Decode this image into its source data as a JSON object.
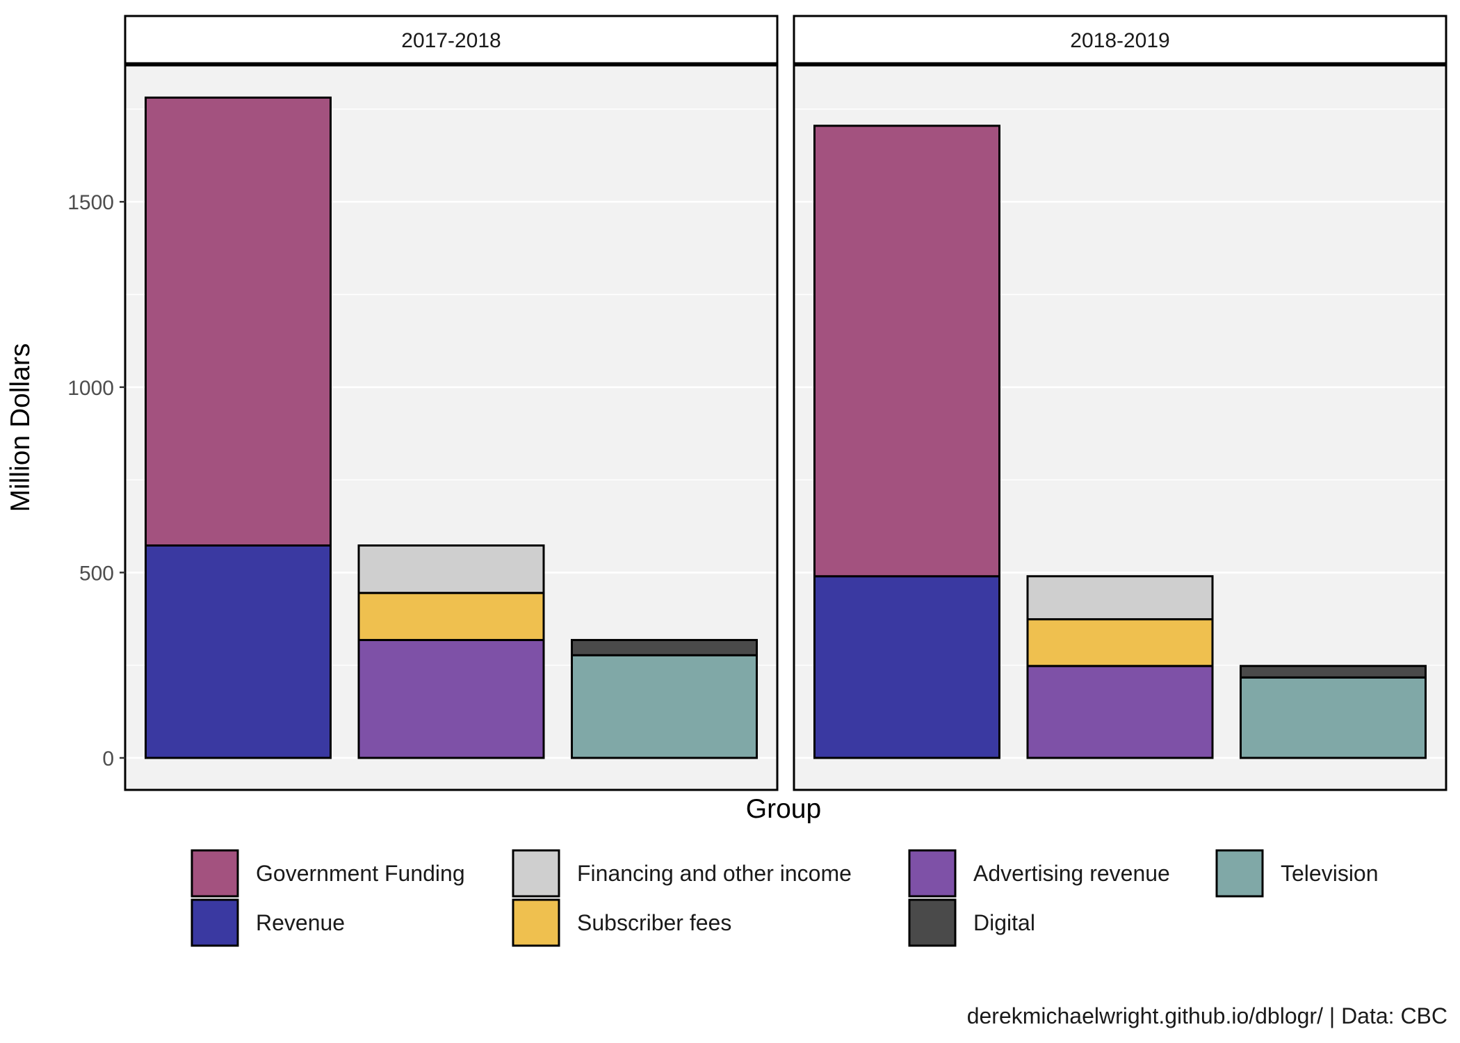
{
  "chart_data": {
    "type": "bar",
    "stacked": true,
    "faceted": true,
    "xlabel": "Group",
    "ylabel": "Million Dollars",
    "ylim": [
      -90,
      1900
    ],
    "y_ticks": [
      0,
      500,
      1000,
      1500
    ],
    "y_tick_labels": [
      "0",
      "500",
      "1000",
      "1500"
    ],
    "grid": "on",
    "legend_position": "bottom",
    "caption": "derekmichaelwright.github.io/dblogr/ | Data: CBC",
    "colors": {
      "Government Funding": "#a3527f",
      "Revenue": "#3a39a1",
      "Financing and other income": "#cfcfcf",
      "Subscriber fees": "#efc04f",
      "Advertising revenue": "#7e51a7",
      "Digital": "#4a4a4a",
      "Television": "#80a8a7"
    },
    "legend": [
      "Government Funding",
      "Revenue",
      "Financing and other income",
      "Subscriber fees",
      "Advertising revenue",
      "Digital",
      "Television"
    ],
    "panels": [
      {
        "label": "2017-2018",
        "bars": [
          {
            "segments": [
              {
                "name": "Revenue",
                "value": 573
              },
              {
                "name": "Government Funding",
                "value": 1208
              }
            ]
          },
          {
            "segments": [
              {
                "name": "Advertising revenue",
                "value": 318
              },
              {
                "name": "Subscriber fees",
                "value": 127
              },
              {
                "name": "Financing and other income",
                "value": 128
              }
            ]
          },
          {
            "segments": [
              {
                "name": "Television",
                "value": 277
              },
              {
                "name": "Digital",
                "value": 41
              }
            ]
          }
        ]
      },
      {
        "label": "2018-2019",
        "bars": [
          {
            "segments": [
              {
                "name": "Revenue",
                "value": 490
              },
              {
                "name": "Government Funding",
                "value": 1215
              }
            ]
          },
          {
            "segments": [
              {
                "name": "Advertising revenue",
                "value": 248
              },
              {
                "name": "Subscriber fees",
                "value": 126
              },
              {
                "name": "Financing and other income",
                "value": 116
              }
            ]
          },
          {
            "segments": [
              {
                "name": "Television",
                "value": 217
              },
              {
                "name": "Digital",
                "value": 31
              }
            ]
          }
        ]
      }
    ]
  }
}
